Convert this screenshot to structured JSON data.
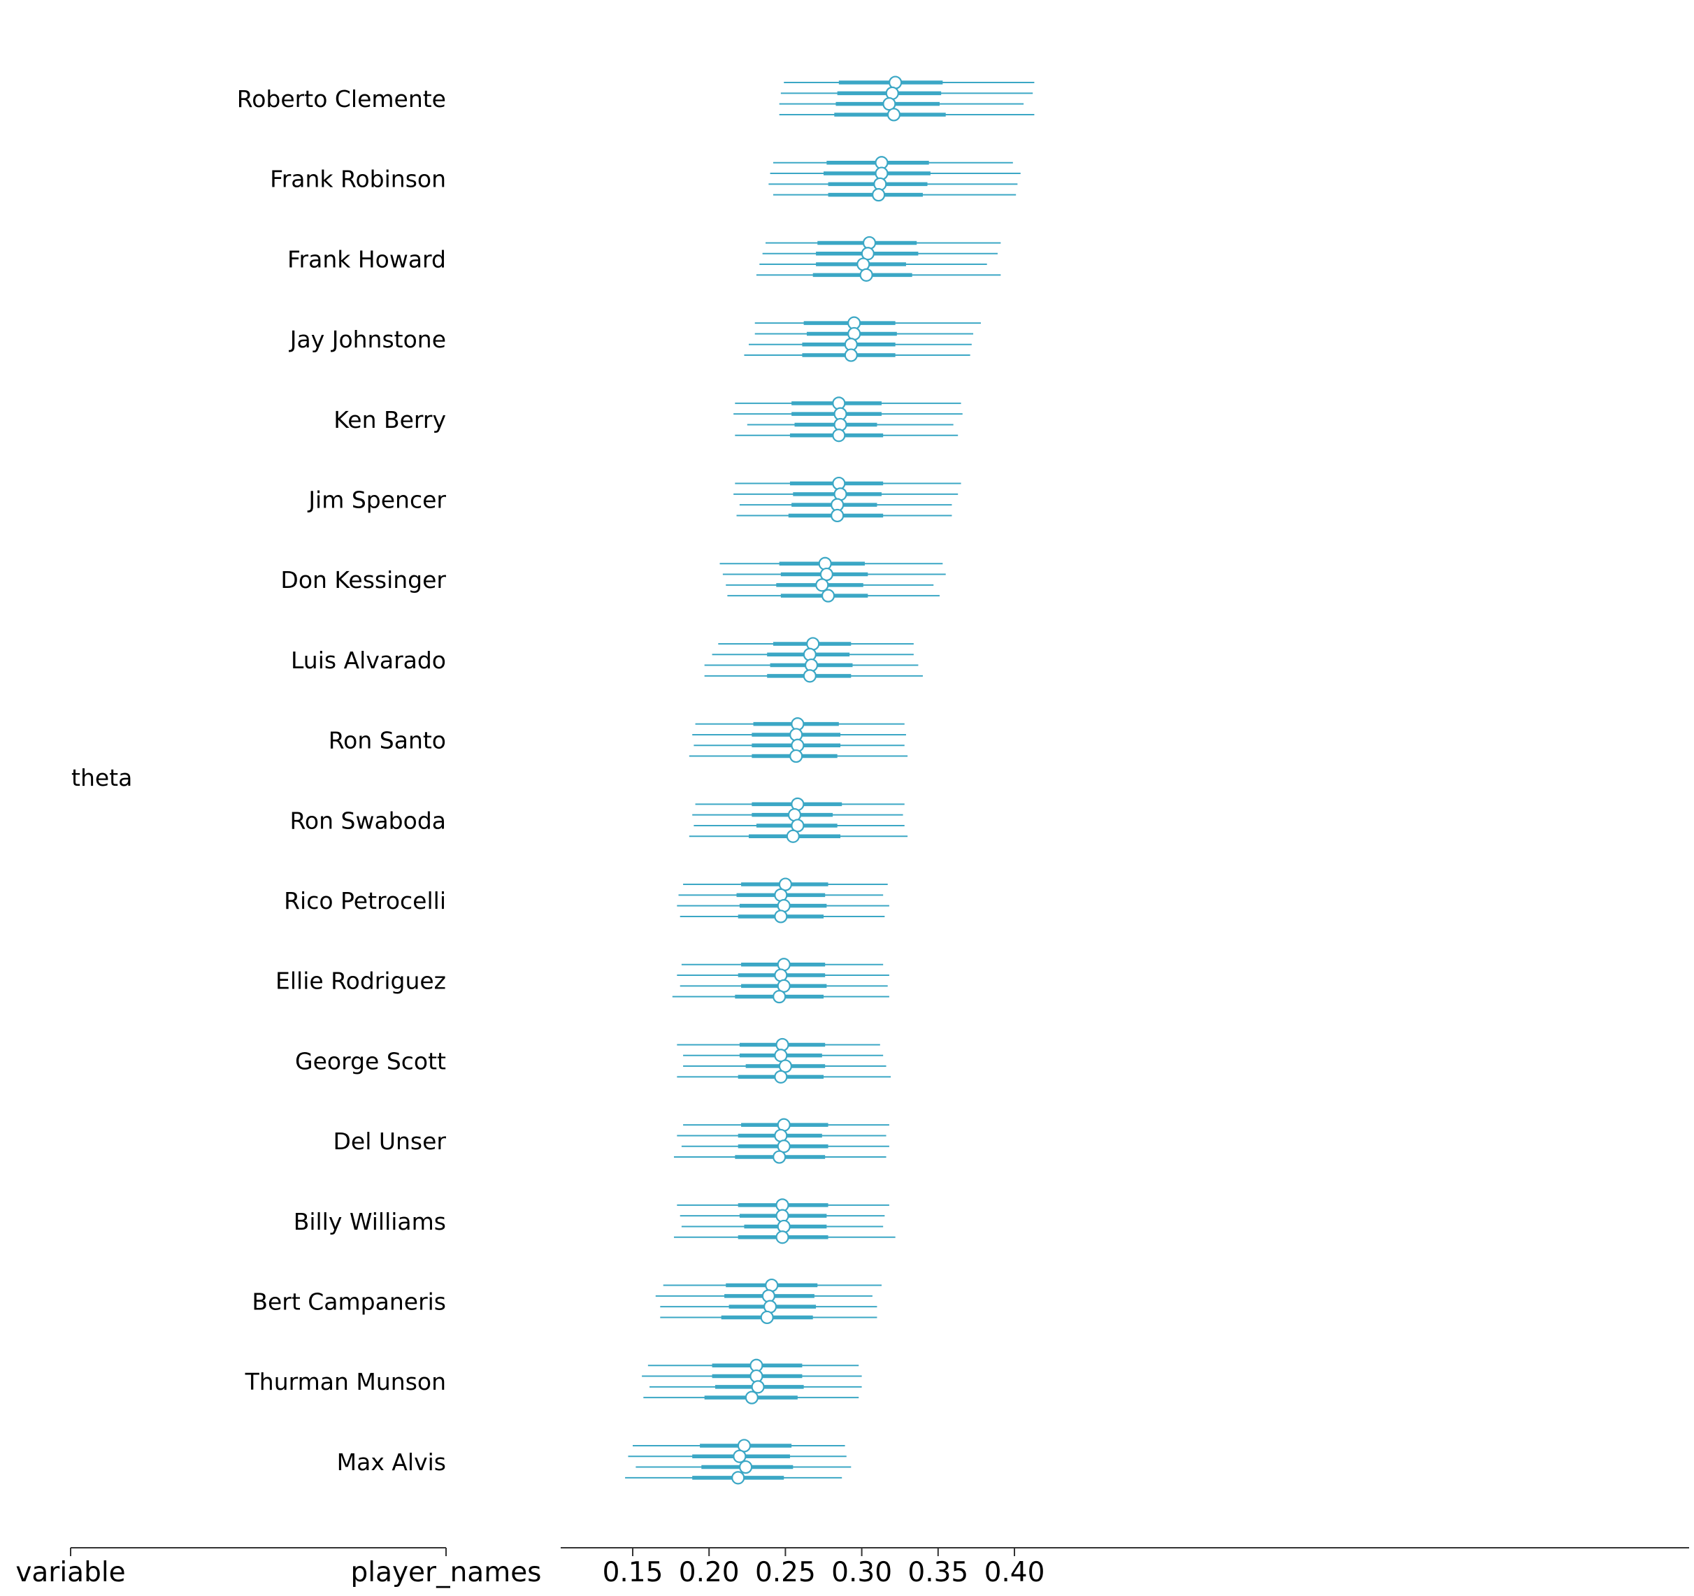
{
  "chart_data": {
    "type": "forest",
    "color": "#3ba7c5",
    "yaxis": {
      "headers": [
        "variable",
        "player_names"
      ],
      "variable": "theta"
    },
    "xlim": [
      0.13,
      0.425
    ],
    "xticks": [
      "0.15",
      "0.20",
      "0.25",
      "0.30",
      "0.35",
      "0.40"
    ],
    "tick_values": [
      0.15,
      0.2,
      0.25,
      0.3,
      0.35,
      0.4
    ],
    "series": [
      {
        "label": "Roberto Clemente",
        "chains": [
          {
            "mean": 0.322,
            "hdi50": [
              0.285,
              0.353
            ],
            "hdi94": [
              0.249,
              0.413
            ]
          },
          {
            "mean": 0.32,
            "hdi50": [
              0.284,
              0.352
            ],
            "hdi94": [
              0.247,
              0.412
            ]
          },
          {
            "mean": 0.318,
            "hdi50": [
              0.283,
              0.351
            ],
            "hdi94": [
              0.246,
              0.406
            ]
          },
          {
            "mean": 0.321,
            "hdi50": [
              0.282,
              0.355
            ],
            "hdi94": [
              0.246,
              0.413
            ]
          }
        ]
      },
      {
        "label": "Frank Robinson",
        "chains": [
          {
            "mean": 0.313,
            "hdi50": [
              0.277,
              0.344
            ],
            "hdi94": [
              0.242,
              0.399
            ]
          },
          {
            "mean": 0.313,
            "hdi50": [
              0.275,
              0.345
            ],
            "hdi94": [
              0.24,
              0.404
            ]
          },
          {
            "mean": 0.312,
            "hdi50": [
              0.278,
              0.343
            ],
            "hdi94": [
              0.239,
              0.402
            ]
          },
          {
            "mean": 0.311,
            "hdi50": [
              0.278,
              0.34
            ],
            "hdi94": [
              0.242,
              0.401
            ]
          }
        ]
      },
      {
        "label": "Frank Howard",
        "chains": [
          {
            "mean": 0.305,
            "hdi50": [
              0.271,
              0.336
            ],
            "hdi94": [
              0.237,
              0.391
            ]
          },
          {
            "mean": 0.304,
            "hdi50": [
              0.27,
              0.337
            ],
            "hdi94": [
              0.235,
              0.389
            ]
          },
          {
            "mean": 0.301,
            "hdi50": [
              0.27,
              0.329
            ],
            "hdi94": [
              0.233,
              0.382
            ]
          },
          {
            "mean": 0.303,
            "hdi50": [
              0.268,
              0.333
            ],
            "hdi94": [
              0.231,
              0.391
            ]
          }
        ]
      },
      {
        "label": "Jay Johnstone",
        "chains": [
          {
            "mean": 0.295,
            "hdi50": [
              0.262,
              0.322
            ],
            "hdi94": [
              0.23,
              0.378
            ]
          },
          {
            "mean": 0.295,
            "hdi50": [
              0.264,
              0.323
            ],
            "hdi94": [
              0.23,
              0.373
            ]
          },
          {
            "mean": 0.293,
            "hdi50": [
              0.261,
              0.322
            ],
            "hdi94": [
              0.226,
              0.372
            ]
          },
          {
            "mean": 0.293,
            "hdi50": [
              0.261,
              0.322
            ],
            "hdi94": [
              0.223,
              0.371
            ]
          }
        ]
      },
      {
        "label": "Ken Berry",
        "chains": [
          {
            "mean": 0.285,
            "hdi50": [
              0.254,
              0.313
            ],
            "hdi94": [
              0.217,
              0.365
            ]
          },
          {
            "mean": 0.286,
            "hdi50": [
              0.254,
              0.313
            ],
            "hdi94": [
              0.216,
              0.366
            ]
          },
          {
            "mean": 0.286,
            "hdi50": [
              0.256,
              0.31
            ],
            "hdi94": [
              0.225,
              0.36
            ]
          },
          {
            "mean": 0.285,
            "hdi50": [
              0.253,
              0.314
            ],
            "hdi94": [
              0.217,
              0.363
            ]
          }
        ]
      },
      {
        "label": "Jim Spencer",
        "chains": [
          {
            "mean": 0.285,
            "hdi50": [
              0.253,
              0.314
            ],
            "hdi94": [
              0.217,
              0.365
            ]
          },
          {
            "mean": 0.286,
            "hdi50": [
              0.255,
              0.313
            ],
            "hdi94": [
              0.216,
              0.363
            ]
          },
          {
            "mean": 0.284,
            "hdi50": [
              0.254,
              0.31
            ],
            "hdi94": [
              0.22,
              0.359
            ]
          },
          {
            "mean": 0.284,
            "hdi50": [
              0.252,
              0.314
            ],
            "hdi94": [
              0.218,
              0.359
            ]
          }
        ]
      },
      {
        "label": "Don Kessinger",
        "chains": [
          {
            "mean": 0.276,
            "hdi50": [
              0.246,
              0.302
            ],
            "hdi94": [
              0.207,
              0.353
            ]
          },
          {
            "mean": 0.277,
            "hdi50": [
              0.247,
              0.304
            ],
            "hdi94": [
              0.209,
              0.355
            ]
          },
          {
            "mean": 0.274,
            "hdi50": [
              0.244,
              0.301
            ],
            "hdi94": [
              0.211,
              0.347
            ]
          },
          {
            "mean": 0.278,
            "hdi50": [
              0.247,
              0.304
            ],
            "hdi94": [
              0.212,
              0.351
            ]
          }
        ]
      },
      {
        "label": "Luis Alvarado",
        "chains": [
          {
            "mean": 0.268,
            "hdi50": [
              0.242,
              0.293
            ],
            "hdi94": [
              0.206,
              0.334
            ]
          },
          {
            "mean": 0.266,
            "hdi50": [
              0.238,
              0.292
            ],
            "hdi94": [
              0.202,
              0.334
            ]
          },
          {
            "mean": 0.267,
            "hdi50": [
              0.24,
              0.294
            ],
            "hdi94": [
              0.197,
              0.337
            ]
          },
          {
            "mean": 0.266,
            "hdi50": [
              0.238,
              0.293
            ],
            "hdi94": [
              0.197,
              0.34
            ]
          }
        ]
      },
      {
        "label": "Ron Santo",
        "chains": [
          {
            "mean": 0.258,
            "hdi50": [
              0.229,
              0.285
            ],
            "hdi94": [
              0.191,
              0.328
            ]
          },
          {
            "mean": 0.257,
            "hdi50": [
              0.228,
              0.286
            ],
            "hdi94": [
              0.189,
              0.329
            ]
          },
          {
            "mean": 0.258,
            "hdi50": [
              0.228,
              0.286
            ],
            "hdi94": [
              0.19,
              0.328
            ]
          },
          {
            "mean": 0.257,
            "hdi50": [
              0.228,
              0.284
            ],
            "hdi94": [
              0.187,
              0.33
            ]
          }
        ]
      },
      {
        "label": "Ron Swaboda",
        "chains": [
          {
            "mean": 0.258,
            "hdi50": [
              0.228,
              0.287
            ],
            "hdi94": [
              0.191,
              0.328
            ]
          },
          {
            "mean": 0.256,
            "hdi50": [
              0.228,
              0.281
            ],
            "hdi94": [
              0.189,
              0.327
            ]
          },
          {
            "mean": 0.258,
            "hdi50": [
              0.231,
              0.284
            ],
            "hdi94": [
              0.19,
              0.328
            ]
          },
          {
            "mean": 0.255,
            "hdi50": [
              0.226,
              0.286
            ],
            "hdi94": [
              0.187,
              0.33
            ]
          }
        ]
      },
      {
        "label": "Rico Petrocelli",
        "chains": [
          {
            "mean": 0.25,
            "hdi50": [
              0.221,
              0.278
            ],
            "hdi94": [
              0.183,
              0.317
            ]
          },
          {
            "mean": 0.247,
            "hdi50": [
              0.218,
              0.276
            ],
            "hdi94": [
              0.18,
              0.314
            ]
          },
          {
            "mean": 0.249,
            "hdi50": [
              0.22,
              0.277
            ],
            "hdi94": [
              0.179,
              0.318
            ]
          },
          {
            "mean": 0.247,
            "hdi50": [
              0.219,
              0.275
            ],
            "hdi94": [
              0.181,
              0.315
            ]
          }
        ]
      },
      {
        "label": "Ellie Rodriguez",
        "chains": [
          {
            "mean": 0.249,
            "hdi50": [
              0.221,
              0.276
            ],
            "hdi94": [
              0.182,
              0.314
            ]
          },
          {
            "mean": 0.247,
            "hdi50": [
              0.219,
              0.276
            ],
            "hdi94": [
              0.179,
              0.318
            ]
          },
          {
            "mean": 0.249,
            "hdi50": [
              0.221,
              0.277
            ],
            "hdi94": [
              0.181,
              0.317
            ]
          },
          {
            "mean": 0.246,
            "hdi50": [
              0.217,
              0.275
            ],
            "hdi94": [
              0.176,
              0.318
            ]
          }
        ]
      },
      {
        "label": "George Scott",
        "chains": [
          {
            "mean": 0.248,
            "hdi50": [
              0.22,
              0.276
            ],
            "hdi94": [
              0.179,
              0.312
            ]
          },
          {
            "mean": 0.247,
            "hdi50": [
              0.22,
              0.274
            ],
            "hdi94": [
              0.183,
              0.314
            ]
          },
          {
            "mean": 0.25,
            "hdi50": [
              0.224,
              0.276
            ],
            "hdi94": [
              0.183,
              0.316
            ]
          },
          {
            "mean": 0.247,
            "hdi50": [
              0.219,
              0.275
            ],
            "hdi94": [
              0.179,
              0.319
            ]
          }
        ]
      },
      {
        "label": "Del Unser",
        "chains": [
          {
            "mean": 0.249,
            "hdi50": [
              0.221,
              0.278
            ],
            "hdi94": [
              0.183,
              0.318
            ]
          },
          {
            "mean": 0.247,
            "hdi50": [
              0.219,
              0.274
            ],
            "hdi94": [
              0.179,
              0.316
            ]
          },
          {
            "mean": 0.249,
            "hdi50": [
              0.219,
              0.278
            ],
            "hdi94": [
              0.182,
              0.318
            ]
          },
          {
            "mean": 0.246,
            "hdi50": [
              0.217,
              0.276
            ],
            "hdi94": [
              0.177,
              0.316
            ]
          }
        ]
      },
      {
        "label": "Billy Williams",
        "chains": [
          {
            "mean": 0.248,
            "hdi50": [
              0.219,
              0.278
            ],
            "hdi94": [
              0.179,
              0.318
            ]
          },
          {
            "mean": 0.248,
            "hdi50": [
              0.22,
              0.277
            ],
            "hdi94": [
              0.181,
              0.315
            ]
          },
          {
            "mean": 0.249,
            "hdi50": [
              0.223,
              0.277
            ],
            "hdi94": [
              0.182,
              0.314
            ]
          },
          {
            "mean": 0.248,
            "hdi50": [
              0.219,
              0.278
            ],
            "hdi94": [
              0.177,
              0.322
            ]
          }
        ]
      },
      {
        "label": "Bert Campaneris",
        "chains": [
          {
            "mean": 0.241,
            "hdi50": [
              0.211,
              0.271
            ],
            "hdi94": [
              0.17,
              0.313
            ]
          },
          {
            "mean": 0.239,
            "hdi50": [
              0.21,
              0.269
            ],
            "hdi94": [
              0.165,
              0.307
            ]
          },
          {
            "mean": 0.24,
            "hdi50": [
              0.213,
              0.27
            ],
            "hdi94": [
              0.168,
              0.31
            ]
          },
          {
            "mean": 0.238,
            "hdi50": [
              0.208,
              0.268
            ],
            "hdi94": [
              0.168,
              0.31
            ]
          }
        ]
      },
      {
        "label": "Thurman Munson",
        "chains": [
          {
            "mean": 0.231,
            "hdi50": [
              0.202,
              0.261
            ],
            "hdi94": [
              0.16,
              0.298
            ]
          },
          {
            "mean": 0.231,
            "hdi50": [
              0.202,
              0.261
            ],
            "hdi94": [
              0.156,
              0.3
            ]
          },
          {
            "mean": 0.232,
            "hdi50": [
              0.204,
              0.262
            ],
            "hdi94": [
              0.161,
              0.3
            ]
          },
          {
            "mean": 0.228,
            "hdi50": [
              0.197,
              0.258
            ],
            "hdi94": [
              0.157,
              0.298
            ]
          }
        ]
      },
      {
        "label": "Max Alvis",
        "chains": [
          {
            "mean": 0.223,
            "hdi50": [
              0.194,
              0.254
            ],
            "hdi94": [
              0.15,
              0.289
            ]
          },
          {
            "mean": 0.22,
            "hdi50": [
              0.189,
              0.253
            ],
            "hdi94": [
              0.147,
              0.29
            ]
          },
          {
            "mean": 0.224,
            "hdi50": [
              0.195,
              0.255
            ],
            "hdi94": [
              0.152,
              0.293
            ]
          },
          {
            "mean": 0.219,
            "hdi50": [
              0.189,
              0.249
            ],
            "hdi94": [
              0.145,
              0.287
            ]
          }
        ]
      }
    ]
  }
}
